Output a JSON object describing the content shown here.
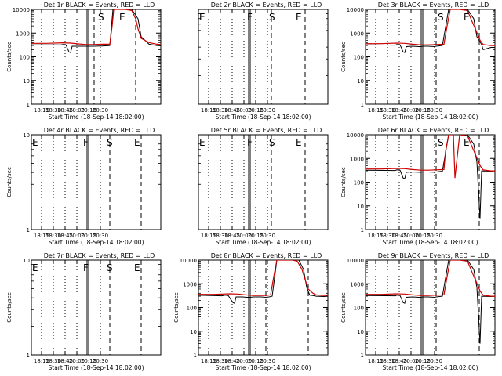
{
  "chart_data": [
    {
      "type": "line",
      "title": "Det 1r BLACK = Events, RED = LLD",
      "xlabel": "Start Time (18-Sep-14 18:02:00)",
      "ylabel": "Counts/sec",
      "yscale": "log",
      "ylim": [
        1,
        10000
      ],
      "ytick_labels": [
        "1",
        "10",
        "100",
        "1000",
        "10000"
      ],
      "xlim": [
        0,
        165
      ],
      "xtick_labels": [
        "18:15",
        "18:30",
        "18:45",
        "20:00",
        "20:15",
        "20:30"
      ],
      "xtick_pos": [
        13,
        28,
        43,
        58,
        73,
        88
      ],
      "dotted_lines": [
        13,
        28,
        43,
        58,
        73,
        88
      ],
      "solid_lines": [
        71,
        73
      ],
      "dashed_lines": [
        80,
        133
      ],
      "markers": [
        {
          "text": "S",
          "x": 85
        },
        {
          "text": "E",
          "x": 112
        }
      ],
      "series": [
        {
          "color": "#000000",
          "x": [
            0,
            38,
            40,
            44,
            48,
            50,
            52,
            60,
            68,
            70,
            71,
            73,
            75,
            80,
            90,
            100,
            104,
            110,
            120,
            128,
            136,
            140,
            150,
            160,
            165
          ],
          "y": [
            320,
            320,
            330,
            320,
            160,
            150,
            280,
            280,
            280,
            280,
            280,
            280,
            280,
            280,
            285,
            300,
            10000,
            10000,
            10000,
            10000,
            4000,
            700,
            340,
            300,
            290
          ]
        },
        {
          "color": "#cc0000",
          "x": [
            0,
            20,
            40,
            50,
            60,
            70,
            80,
            90,
            100,
            103,
            105,
            110,
            120,
            128,
            133,
            136,
            140,
            150,
            160,
            165
          ],
          "y": [
            370,
            370,
            390,
            380,
            350,
            330,
            330,
            340,
            340,
            2000,
            10000,
            10000,
            10000,
            9000,
            4000,
            1500,
            600,
            400,
            340,
            330
          ]
        }
      ]
    },
    {
      "type": "line",
      "title": "Det 2r BLACK = Events, RED = LLD",
      "xlabel": "Start Time (18-Sep-14 18:02:00)",
      "ylabel": "",
      "yscale": "log",
      "ylim": [
        1,
        10
      ],
      "ytick_labels": [],
      "xlim": [
        0,
        165
      ],
      "xtick_labels": [
        "18:15",
        "18:30",
        "18:45",
        "20:00",
        "20:15",
        "20:30"
      ],
      "xtick_pos": [
        13,
        28,
        43,
        58,
        73,
        88
      ],
      "dotted_lines": [
        13,
        28,
        43,
        58,
        73,
        88
      ],
      "solid_lines": [
        64,
        66
      ],
      "dashed_lines": [
        93,
        136
      ],
      "markers": [
        {
          "text": "E",
          "x": 1
        },
        {
          "text": "F",
          "x": 62
        },
        {
          "text": "S",
          "x": 90
        },
        {
          "text": "E",
          "x": 124
        }
      ],
      "series": []
    },
    {
      "type": "line",
      "title": "Det 3r BLACK = Events, RED = LLD",
      "xlabel": "Start Time (18-Sep-14 18:02:00)",
      "ylabel": "Counts/sec",
      "yscale": "log",
      "ylim": [
        1,
        10000
      ],
      "ytick_labels": [
        "1",
        "10",
        "100",
        "1000",
        "10000"
      ],
      "xlim": [
        0,
        165
      ],
      "xtick_labels": [
        "18:15",
        "18:30",
        "18:45",
        "20:00",
        "20:15",
        "20:30"
      ],
      "xtick_pos": [
        13,
        28,
        43,
        58,
        73,
        88
      ],
      "dotted_lines": [
        13,
        28,
        43,
        58,
        73,
        88
      ],
      "solid_lines": [
        71,
        73
      ],
      "dashed_lines": [
        90,
        145
      ],
      "markers": [
        {
          "text": "S",
          "x": 92
        },
        {
          "text": "E",
          "x": 125
        }
      ],
      "series": [
        {
          "color": "#000000",
          "x": [
            0,
            38,
            40,
            44,
            48,
            50,
            52,
            60,
            68,
            70,
            71,
            73,
            80,
            88,
            90,
            98,
            106,
            112,
            120,
            130,
            138,
            142,
            148,
            150,
            160,
            165
          ],
          "y": [
            320,
            310,
            330,
            320,
            160,
            150,
            270,
            280,
            270,
            270,
            270,
            280,
            280,
            270,
            280,
            300,
            10000,
            10000,
            10000,
            10000,
            4000,
            700,
            330,
            200,
            250,
            250
          ]
        },
        {
          "color": "#cc0000",
          "x": [
            0,
            20,
            40,
            50,
            60,
            70,
            80,
            90,
            100,
            104,
            108,
            112,
            120,
            130,
            136,
            140,
            146,
            150,
            160,
            165
          ],
          "y": [
            360,
            360,
            380,
            370,
            340,
            320,
            320,
            330,
            340,
            2000,
            10000,
            10000,
            10000,
            9000,
            3000,
            1500,
            500,
            330,
            300,
            300
          ]
        }
      ]
    },
    {
      "type": "line",
      "title": "Det 4r BLACK = Events, RED = LLD",
      "xlabel": "Start Time (18-Sep-14 18:02:00)",
      "ylabel": "Counts/sec",
      "yscale": "log",
      "ylim": [
        1,
        10
      ],
      "ytick_labels": [
        "1",
        "10"
      ],
      "xlim": [
        0,
        165
      ],
      "xtick_labels": [
        "18:15",
        "18:30",
        "18:45",
        "20:00",
        "20:15",
        "20:30"
      ],
      "xtick_pos": [
        13,
        28,
        43,
        58,
        73,
        88
      ],
      "dotted_lines": [
        13,
        28,
        43,
        58,
        73,
        88
      ],
      "solid_lines": [
        71,
        73
      ],
      "dashed_lines": [
        100,
        140
      ],
      "markers": [
        {
          "text": "E",
          "x": 1
        },
        {
          "text": "F",
          "x": 66
        },
        {
          "text": "S",
          "x": 96
        },
        {
          "text": "E",
          "x": 131
        }
      ],
      "series": []
    },
    {
      "type": "line",
      "title": "Det 5r BLACK = Events, RED = LLD",
      "xlabel": "Start Time (18-Sep-14 18:02:00)",
      "ylabel": "",
      "yscale": "log",
      "ylim": [
        1,
        10
      ],
      "ytick_labels": [],
      "xlim": [
        0,
        165
      ],
      "xtick_labels": [
        "18:15",
        "18:30",
        "18:45",
        "20:00",
        "20:15",
        "20:30"
      ],
      "xtick_pos": [
        13,
        28,
        43,
        58,
        73,
        88
      ],
      "dotted_lines": [
        13,
        28,
        43,
        58,
        73,
        88
      ],
      "solid_lines": [
        64,
        66
      ],
      "dashed_lines": [
        93,
        136
      ],
      "markers": [
        {
          "text": "E",
          "x": 1
        },
        {
          "text": "F",
          "x": 62
        },
        {
          "text": "S",
          "x": 90
        },
        {
          "text": "E",
          "x": 124
        }
      ],
      "series": []
    },
    {
      "type": "line",
      "title": "Det 6r BLACK = Events, RED = LLD",
      "xlabel": "Start Time (18-Sep-14 18:02:00)",
      "ylabel": "Counts/sec",
      "yscale": "log",
      "ylim": [
        1,
        10000
      ],
      "ytick_labels": [
        "1",
        "10",
        "100",
        "1000",
        "10000"
      ],
      "xlim": [
        0,
        165
      ],
      "xtick_labels": [
        "18:15",
        "18:30",
        "18:45",
        "20:00",
        "20:15",
        "20:30"
      ],
      "xtick_pos": [
        13,
        28,
        43,
        58,
        73,
        88
      ],
      "dotted_lines": [
        13,
        28,
        43,
        58,
        73,
        88
      ],
      "solid_lines": [
        71,
        73
      ],
      "dashed_lines": [
        90,
        145
      ],
      "markers": [
        {
          "text": "S",
          "x": 92
        },
        {
          "text": "E",
          "x": 125
        }
      ],
      "series": [
        {
          "color": "#000000",
          "x": [
            0,
            38,
            40,
            44,
            48,
            50,
            52,
            60,
            68,
            70,
            71,
            73,
            80,
            88,
            90,
            98,
            106,
            112,
            120,
            130,
            138,
            142,
            146,
            148,
            160,
            165
          ],
          "y": [
            320,
            310,
            330,
            320,
            150,
            140,
            260,
            270,
            260,
            260,
            260,
            270,
            270,
            260,
            270,
            290,
            10000,
            10000,
            10000,
            10000,
            4000,
            700,
            3,
            300,
            290,
            300
          ]
        },
        {
          "color": "#cc0000",
          "x": [
            0,
            20,
            40,
            50,
            60,
            70,
            80,
            90,
            100,
            102,
            106,
            108,
            112,
            114,
            120,
            130,
            136,
            140,
            146,
            150,
            160,
            165
          ],
          "y": [
            360,
            360,
            380,
            370,
            340,
            320,
            320,
            330,
            340,
            2000,
            10000,
            10000,
            10000,
            150,
            10000,
            9000,
            3000,
            1500,
            500,
            330,
            300,
            300
          ]
        }
      ]
    },
    {
      "type": "line",
      "title": "Det 7r BLACK = Events, RED = LLD",
      "xlabel": "Start Time (18-Sep-14 18:02:00)",
      "ylabel": "Counts/sec",
      "yscale": "log",
      "ylim": [
        1,
        10
      ],
      "ytick_labels": [
        "1",
        "10"
      ],
      "xlim": [
        0,
        165
      ],
      "xtick_labels": [
        "18:15",
        "18:30",
        "18:45",
        "20:00",
        "20:15",
        "20:30"
      ],
      "xtick_pos": [
        13,
        28,
        43,
        58,
        73,
        88
      ],
      "dotted_lines": [
        13,
        28,
        43,
        58,
        73,
        88
      ],
      "solid_lines": [
        71,
        73
      ],
      "dashed_lines": [
        100,
        140
      ],
      "markers": [
        {
          "text": "E",
          "x": 1
        },
        {
          "text": "F",
          "x": 66
        },
        {
          "text": "S",
          "x": 96
        },
        {
          "text": "E",
          "x": 131
        }
      ],
      "series": []
    },
    {
      "type": "line",
      "title": "Det 8r BLACK = Events, RED = LLD",
      "xlabel": "Start Time (18-Sep-14 18:02:00)",
      "ylabel": "Counts/sec",
      "yscale": "log",
      "ylim": [
        1,
        10000
      ],
      "ytick_labels": [
        "1",
        "10",
        "100",
        "1000",
        "10000"
      ],
      "xlim": [
        0,
        165
      ],
      "xtick_labels": [
        "18:15",
        "18:30",
        "18:45",
        "20:00",
        "20:15",
        "20:30"
      ],
      "xtick_pos": [
        13,
        28,
        43,
        58,
        73,
        88
      ],
      "dotted_lines": [
        13,
        28,
        43,
        58,
        73,
        88
      ],
      "solid_lines": [
        64,
        66
      ],
      "dashed_lines": [
        86,
        140
      ],
      "markers": [],
      "series": [
        {
          "color": "#000000",
          "x": [
            0,
            30,
            34,
            38,
            44,
            46,
            48,
            56,
            62,
            64,
            66,
            70,
            80,
            86,
            90,
            94,
            100,
            110,
            120,
            128,
            134,
            138,
            142,
            146,
            150,
            160,
            165
          ],
          "y": [
            330,
            310,
            330,
            320,
            160,
            150,
            280,
            280,
            270,
            270,
            270,
            280,
            280,
            270,
            280,
            300,
            10000,
            10000,
            10000,
            10000,
            4000,
            700,
            330,
            320,
            300,
            290,
            300
          ]
        },
        {
          "color": "#cc0000",
          "x": [
            0,
            20,
            40,
            50,
            60,
            70,
            80,
            86,
            92,
            96,
            100,
            110,
            120,
            126,
            132,
            136,
            140,
            146,
            150,
            160,
            165
          ],
          "y": [
            360,
            360,
            380,
            370,
            340,
            320,
            320,
            320,
            340,
            2000,
            10000,
            10000,
            10000,
            9000,
            4000,
            1500,
            600,
            400,
            340,
            320,
            320
          ]
        }
      ]
    },
    {
      "type": "line",
      "title": "Det 9r BLACK = Events, RED = LLD",
      "xlabel": "Start Time (18-Sep-14 18:02:00)",
      "ylabel": "Counts/sec",
      "yscale": "log",
      "ylim": [
        1,
        10000
      ],
      "ytick_labels": [
        "1",
        "10",
        "100",
        "1000",
        "10000"
      ],
      "xlim": [
        0,
        165
      ],
      "xtick_labels": [
        "18:15",
        "18:30",
        "18:45",
        "20:00",
        "20:15",
        "20:30"
      ],
      "xtick_pos": [
        13,
        28,
        43,
        58,
        73,
        88
      ],
      "dotted_lines": [
        13,
        28,
        43,
        58,
        73,
        88
      ],
      "solid_lines": [
        71,
        73
      ],
      "dashed_lines": [
        90,
        145
      ],
      "markers": [],
      "series": [
        {
          "color": "#000000",
          "x": [
            0,
            38,
            40,
            44,
            48,
            50,
            52,
            60,
            68,
            70,
            71,
            73,
            80,
            88,
            90,
            98,
            106,
            112,
            120,
            130,
            138,
            142,
            146,
            148,
            160,
            165
          ],
          "y": [
            320,
            310,
            330,
            320,
            160,
            150,
            270,
            280,
            270,
            270,
            270,
            280,
            280,
            270,
            280,
            300,
            10000,
            10000,
            10000,
            10000,
            4000,
            700,
            3,
            300,
            290,
            300
          ]
        },
        {
          "color": "#cc0000",
          "x": [
            0,
            20,
            40,
            50,
            60,
            70,
            80,
            90,
            100,
            104,
            108,
            112,
            120,
            130,
            136,
            140,
            146,
            150,
            160,
            165
          ],
          "y": [
            360,
            360,
            380,
            370,
            340,
            320,
            320,
            330,
            340,
            2000,
            10000,
            10000,
            10000,
            9000,
            3000,
            1500,
            500,
            330,
            300,
            300
          ]
        }
      ]
    }
  ]
}
